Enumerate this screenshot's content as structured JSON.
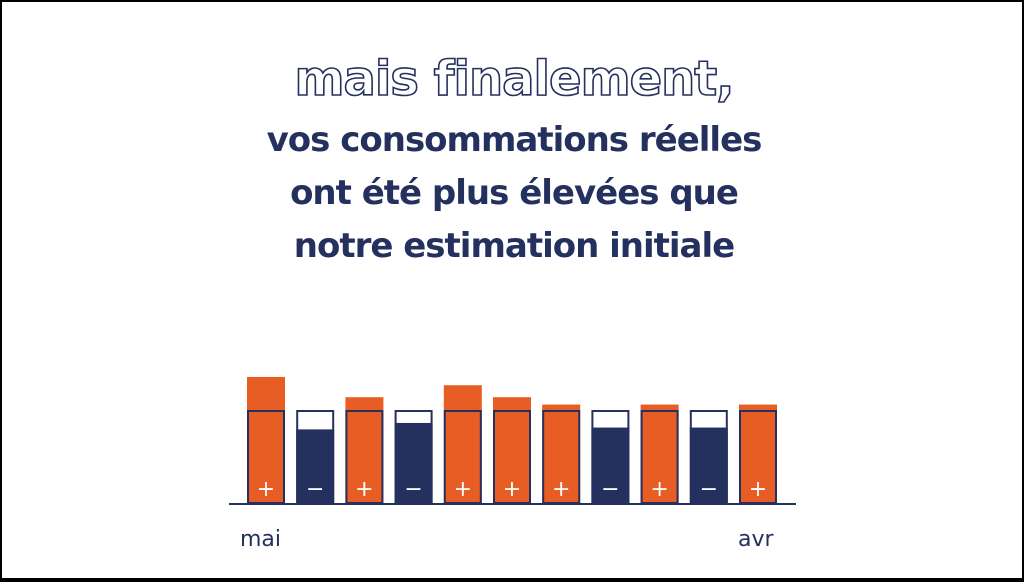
{
  "headline": "mais finalement,",
  "body_lines": [
    "vos consommations réelles",
    "ont été plus élevées que",
    "notre estimation initiale"
  ],
  "colors": {
    "navy": "#24305e",
    "orange": "#e85d24",
    "white": "#ffffff"
  },
  "chart_data": {
    "type": "bar",
    "categories": [
      "mai",
      "",
      "",
      "",
      "",
      "",
      "",
      "",
      "",
      "",
      "avr"
    ],
    "estimate": 1.0,
    "series": [
      {
        "values": [
          1.37,
          0.8,
          1.15,
          0.87,
          1.28,
          1.15,
          1.07,
          0.82,
          1.07,
          0.82,
          1.07
        ]
      }
    ],
    "markers": [
      "+",
      "−",
      "+",
      "−",
      "+",
      "+",
      "+",
      "−",
      "+",
      "−",
      "+"
    ],
    "xlabel_start": "mai",
    "xlabel_end": "avr"
  }
}
